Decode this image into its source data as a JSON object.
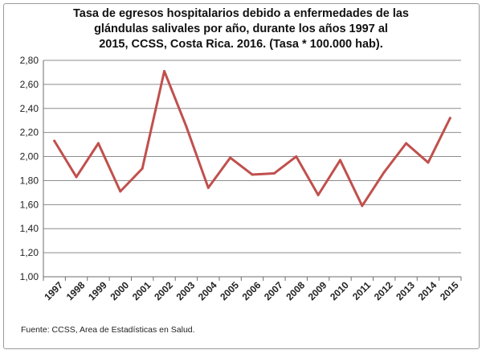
{
  "chart_data": {
    "type": "line",
    "title_lines": [
      "Tasa de egresos hospitalarios debido a enfermedades de las",
      "glándulas salivales por año, durante los años 1997 al",
      "2015, CCSS, Costa Rica. 2016.  (Tasa * 100.000  hab)."
    ],
    "xlabel": "",
    "ylabel": "",
    "x": [
      "1997",
      "1998",
      "1999",
      "2000",
      "2001",
      "2002",
      "2003",
      "2004",
      "2005",
      "2006",
      "2007",
      "2008",
      "2009",
      "2010",
      "2011",
      "2012",
      "2013",
      "2014",
      "2015"
    ],
    "series": [
      {
        "values": [
          2.13,
          1.83,
          2.11,
          1.71,
          1.9,
          2.71,
          2.25,
          1.74,
          1.99,
          1.85,
          1.86,
          2.0,
          1.68,
          1.97,
          1.59,
          1.87,
          2.11,
          1.95,
          2.32
        ],
        "color": "#c0504d"
      }
    ],
    "ylim": [
      1.0,
      2.8
    ],
    "yticks": [
      "1,00",
      "1,20",
      "1,40",
      "1,60",
      "1,80",
      "2,00",
      "2,20",
      "2,40",
      "2,60",
      "2,80"
    ],
    "grid": true,
    "legend": "none"
  },
  "footer": {
    "source": "Fuente: CCSS, Area de Estadísticas en Salud."
  }
}
